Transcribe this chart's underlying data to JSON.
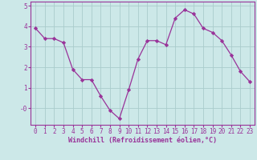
{
  "x": [
    0,
    1,
    2,
    3,
    4,
    5,
    6,
    7,
    8,
    9,
    10,
    11,
    12,
    13,
    14,
    15,
    16,
    17,
    18,
    19,
    20,
    21,
    22,
    23
  ],
  "y": [
    3.9,
    3.4,
    3.4,
    3.2,
    1.9,
    1.4,
    1.4,
    0.6,
    -0.1,
    -0.5,
    0.9,
    2.4,
    3.3,
    3.3,
    3.1,
    4.4,
    4.8,
    4.6,
    3.9,
    3.7,
    3.3,
    2.6,
    1.8,
    1.3
  ],
  "line_color": "#993399",
  "marker": "D",
  "marker_size": 2.2,
  "bg_color": "#cce8e8",
  "grid_color": "#aacccc",
  "xlabel": "Windchill (Refroidissement éolien,°C)",
  "xlabel_color": "#993399",
  "tick_color": "#993399",
  "spine_color": "#993399",
  "ylim": [
    -0.8,
    5.2
  ],
  "xlim": [
    -0.5,
    23.5
  ],
  "ytick_vals": [
    0,
    1,
    2,
    3,
    4,
    5
  ],
  "ytick_labels": [
    "-0",
    "1",
    "2",
    "3",
    "4",
    "5"
  ],
  "xticks": [
    0,
    1,
    2,
    3,
    4,
    5,
    6,
    7,
    8,
    9,
    10,
    11,
    12,
    13,
    14,
    15,
    16,
    17,
    18,
    19,
    20,
    21,
    22,
    23
  ],
  "tick_fontsize": 5.5,
  "xlabel_fontsize": 6.0
}
